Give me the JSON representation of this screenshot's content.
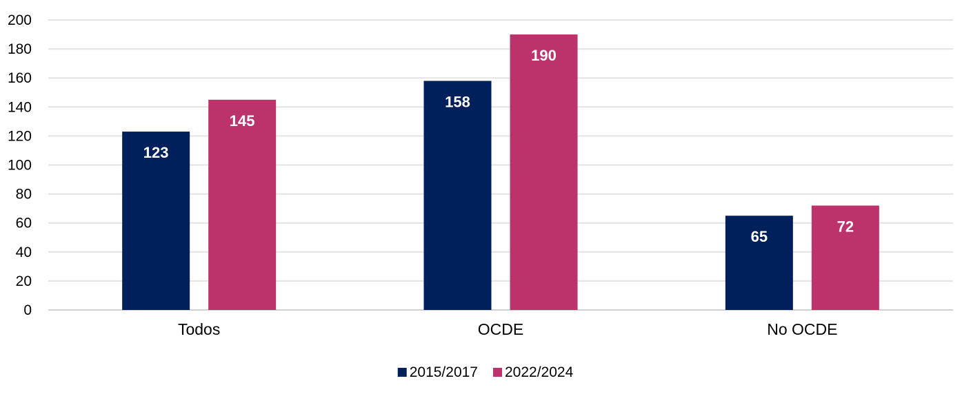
{
  "chart_data": {
    "type": "bar",
    "categories": [
      "Todos",
      "OCDE",
      "No OCDE"
    ],
    "series": [
      {
        "name": "2015/2017",
        "values": [
          123,
          158,
          65
        ],
        "color": "#00205B"
      },
      {
        "name": "2022/2024",
        "values": [
          145,
          190,
          72
        ],
        "color": "#BC336C"
      }
    ],
    "title": "",
    "xlabel": "",
    "ylabel": "",
    "ylim": [
      0,
      200
    ],
    "yticks": [
      0,
      20,
      40,
      60,
      80,
      100,
      120,
      140,
      160,
      180,
      200
    ],
    "grid": true,
    "legend_position": "bottom-center",
    "data_labels": true
  }
}
